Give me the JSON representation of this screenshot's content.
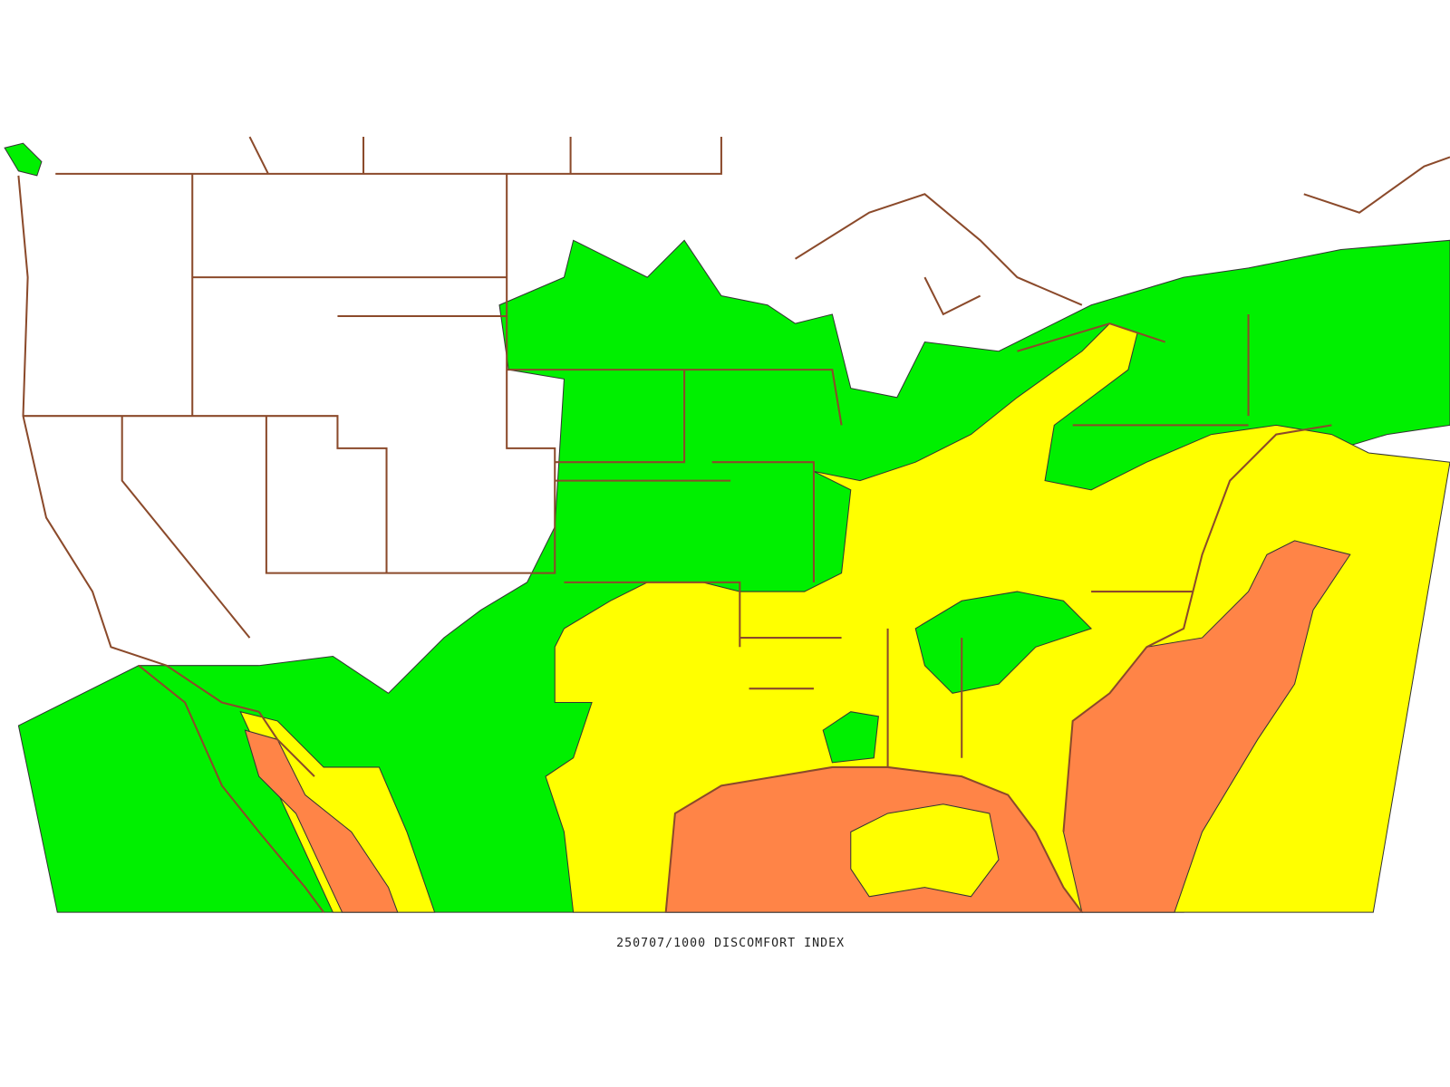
{
  "caption": "250707/1000 DISCOMFORT INDEX"
}
